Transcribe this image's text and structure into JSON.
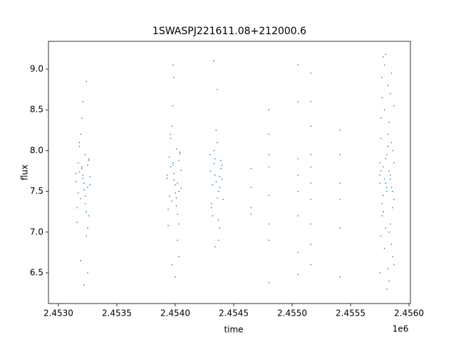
{
  "chart_data": {
    "type": "scatter",
    "title": "1SWASPJ221611.08+212000.6",
    "x_label": "time",
    "y_label": "flux",
    "x_offset_label": "1e6",
    "color": "#1f77b4",
    "xlim": [
      2.452915,
      2.456012
    ],
    "ylim": [
      6.124,
      9.341
    ],
    "xticks": [
      {
        "value": 2.453,
        "label": "2.4530"
      },
      {
        "value": 2.4535,
        "label": "2.4535"
      },
      {
        "value": 2.454,
        "label": "2.4540"
      },
      {
        "value": 2.4545,
        "label": "2.4545"
      },
      {
        "value": 2.455,
        "label": "2.4550"
      },
      {
        "value": 2.4555,
        "label": "2.4555"
      },
      {
        "value": 2.456,
        "label": "2.4560"
      }
    ],
    "yticks": [
      6.5,
      {
        "value": 7,
        "label": "7.0"
      },
      7.5,
      {
        "value": 8,
        "label": "8.0"
      },
      8.5,
      {
        "value": 9,
        "label": "9.0"
      }
    ],
    "x": [
      2.45315,
      2.45317,
      2.45319,
      2.45321,
      2.45323,
      2.45325,
      2.45327,
      2.45316,
      2.45318,
      2.4532,
      2.45322,
      2.45324,
      2.45326,
      2.45315,
      2.45317,
      2.45319,
      2.45321,
      2.45323,
      2.45325,
      2.45327,
      2.45316,
      2.45318,
      2.4532,
      2.45322,
      2.45324,
      2.45326,
      2.45319,
      2.45321,
      2.45323,
      2.45325,
      2.45322,
      2.45324,
      2.45326,
      2.45318,
      2.4532,
      2.45325,
      2.45393,
      2.45395,
      2.45397,
      2.45399,
      2.45401,
      2.45403,
      2.45405,
      2.45394,
      2.45396,
      2.45398,
      2.454,
      2.45402,
      2.45404,
      2.45393,
      2.45395,
      2.45397,
      2.45399,
      2.45401,
      2.45403,
      2.45405,
      2.45394,
      2.45396,
      2.45398,
      2.454,
      2.45402,
      2.45404,
      2.45397,
      2.45399,
      2.45401,
      2.45403,
      2.45398,
      2.454,
      2.45402,
      2.45396,
      2.45398,
      2.45403,
      2.4543,
      2.45432,
      2.45434,
      2.45436,
      2.45438,
      2.4544,
      2.45431,
      2.45433,
      2.45435,
      2.45437,
      2.45439,
      2.45441,
      2.4543,
      2.45432,
      2.45434,
      2.45436,
      2.45438,
      2.4544,
      2.45431,
      2.45433,
      2.45435,
      2.45437,
      2.45439,
      2.45434,
      2.45436,
      2.45438,
      2.45433,
      2.45437,
      2.45465,
      2.45465,
      2.45465,
      2.45465,
      2.4548,
      2.4548,
      2.4548,
      2.4548,
      2.4548,
      2.4548,
      2.4548,
      2.4548,
      2.45505,
      2.45505,
      2.45505,
      2.45505,
      2.45505,
      2.45505,
      2.45505,
      2.45505,
      2.45516,
      2.45516,
      2.45516,
      2.45516,
      2.45516,
      2.45516,
      2.45516,
      2.45516,
      2.45516,
      2.45516,
      2.45541,
      2.45541,
      2.45541,
      2.45541,
      2.45541,
      2.45541,
      2.45575,
      2.45576,
      2.45577,
      2.45578,
      2.45579,
      2.4558,
      2.45581,
      2.45582,
      2.45583,
      2.45584,
      2.45585,
      2.45586,
      2.45587,
      2.45575,
      2.45576,
      2.45577,
      2.45578,
      2.45579,
      2.4558,
      2.45581,
      2.45582,
      2.45583,
      2.45584,
      2.45585,
      2.45586,
      2.45587,
      2.45575,
      2.45576,
      2.45577,
      2.45578,
      2.45579,
      2.4558,
      2.45581,
      2.45582,
      2.45583,
      2.45584,
      2.45585,
      2.45586,
      2.45587,
      2.45575,
      2.45576,
      2.45577,
      2.45578,
      2.45579,
      2.4558,
      2.45581,
      2.45582,
      2.45583,
      2.45584,
      2.45585,
      2.45586,
      2.45587
    ],
    "values": [
      7.62,
      7.85,
      7.41,
      7.7,
      7.95,
      7.55,
      7.68,
      7.3,
      8.05,
      7.78,
      7.6,
      7.25,
      7.9,
      7.72,
      7.48,
      8.2,
      7.66,
      7.35,
      7.82,
      7.58,
      7.12,
      7.74,
      8.4,
      7.52,
      6.95,
      7.88,
      6.65,
      8.6,
      7.44,
      7.05,
      6.35,
      8.85,
      7.2,
      8.1,
      7.8,
      6.5,
      7.7,
      7.92,
      7.38,
      7.64,
      8.02,
      7.5,
      7.76,
      7.28,
      8.15,
      7.82,
      7.58,
      7.22,
      7.96,
      7.66,
      7.44,
      8.3,
      7.72,
      7.32,
      7.88,
      7.54,
      7.08,
      7.8,
      8.55,
      7.48,
      6.9,
      7.98,
      6.6,
      8.9,
      7.42,
      7.1,
      9.05,
      6.45,
      7.6,
      8.2,
      7.85,
      6.7,
      7.75,
      7.58,
      7.9,
      7.42,
      7.68,
      7.82,
      7.3,
      8.0,
      7.62,
      7.5,
      7.88,
      7.4,
      7.95,
      7.2,
      7.7,
      8.1,
      7.55,
      7.65,
      7.35,
      7.84,
      8.25,
      7.15,
      7.78,
      6.82,
      8.75,
      7.05,
      9.1,
      6.9,
      7.78,
      7.55,
      7.3,
      7.22,
      8.5,
      7.95,
      7.8,
      7.45,
      7.1,
      6.9,
      6.38,
      8.2,
      9.05,
      8.6,
      7.9,
      7.7,
      7.5,
      7.2,
      6.75,
      6.48,
      8.95,
      8.6,
      8.3,
      7.95,
      7.8,
      7.6,
      7.4,
      7.1,
      6.85,
      6.6,
      8.25,
      7.95,
      7.6,
      7.4,
      7.05,
      6.45,
      7.7,
      8.4,
      7.2,
      9.15,
      6.8,
      7.9,
      7.55,
      8.8,
      6.4,
      7.65,
      8.1,
      7.3,
      8.55,
      7.85,
      6.95,
      8.65,
      7.45,
      9.05,
      7.6,
      6.3,
      8.2,
      7.75,
      7.1,
      8.95,
      7.5,
      6.6,
      7.6,
      8.15,
      7.35,
      7.8,
      8.5,
      7.05,
      7.95,
      6.55,
      8.35,
      7.7,
      6.85,
      8.0,
      7.4,
      6.5,
      7.75,
      8.9,
      7.25,
      7.65,
      9.18,
      7.5,
      8.05,
      7.0,
      8.7,
      7.55,
      6.7,
      7.85
    ]
  }
}
